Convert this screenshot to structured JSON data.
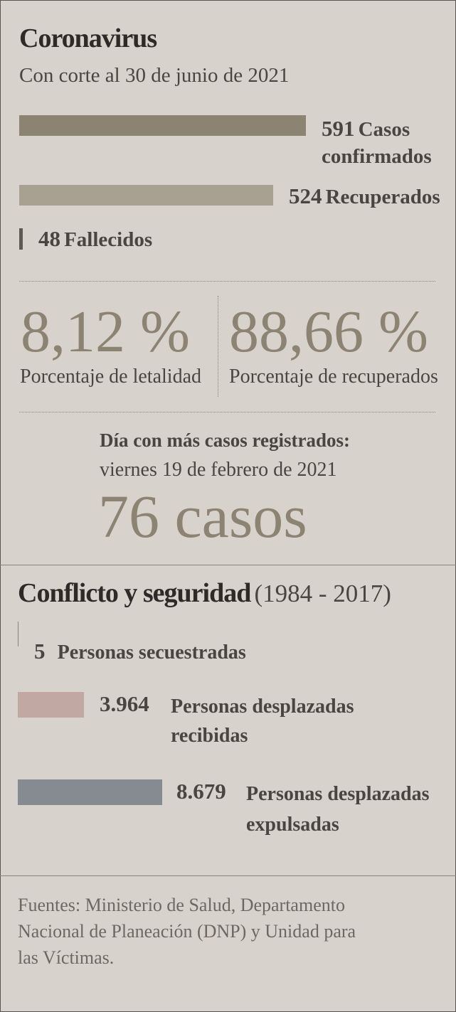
{
  "corona": {
    "title": "Coronavirus",
    "subtitle": "Con corte al 30 de junio de 2021"
  },
  "chart_data": [
    {
      "type": "bar",
      "title": "Coronavirus",
      "subtitle": "Con corte al 30 de junio de 2021",
      "categories": [
        "Casos confirmados",
        "Recuperados",
        "Fallecidos"
      ],
      "values": [
        591,
        524,
        48
      ],
      "colors": [
        "#8c8373",
        "#a8a091",
        "#5e5953"
      ],
      "value_labels": [
        "591",
        "524",
        "48"
      ]
    },
    {
      "type": "bar",
      "title": "Conflicto y seguridad",
      "period": "(1984 - 2017)",
      "categories": [
        "Personas secuestradas",
        "Personas desplazadas recibidas",
        "Personas desplazadas expulsadas"
      ],
      "values": [
        5,
        3964,
        8679
      ],
      "colors": [
        "#8c8373",
        "#c2a8a2",
        "#868a91"
      ],
      "value_labels": [
        "5",
        "3.964",
        "8.679"
      ]
    }
  ],
  "bars1": {
    "casos": {
      "value": "591",
      "label1": "Casos",
      "label2": "confirmados"
    },
    "recuperados": {
      "value": "524",
      "label": "Recuperados"
    },
    "fallecidos": {
      "value": "48",
      "label": "Fallecidos"
    }
  },
  "stats": {
    "letalidad_value": "8,12 %",
    "letalidad_label": "Porcentaje de letalidad",
    "recuperados_value": "88,66 %",
    "recuperados_label": "Porcentaje de recuperados"
  },
  "peak": {
    "heading": "Día con más casos registrados:",
    "date": "viernes 19 de febrero de 2021",
    "count": "76 casos"
  },
  "conflict": {
    "title": "Conflicto y seguridad",
    "period": "(1984 - 2017)",
    "secuestradas": {
      "value": "5",
      "label": "Personas secuestradas"
    },
    "recibidas": {
      "value": "3.964",
      "label1": "Personas desplazadas",
      "label2": "recibidas"
    },
    "expulsadas": {
      "value": "8.679",
      "label1": "Personas desplazadas",
      "label2": "expulsadas"
    }
  },
  "footer": {
    "line1": "Fuentes: Ministerio de Salud, Departamento",
    "line2": "Nacional de Planeación (DNP) y Unidad para",
    "line3": "las Víctimas."
  }
}
